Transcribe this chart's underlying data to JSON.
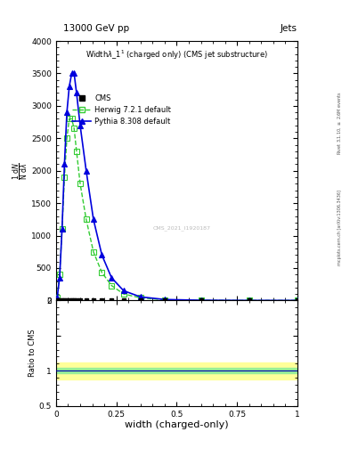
{
  "title_top": "13000 GeV pp",
  "title_right": "Jets",
  "plot_title": "Width $\\lambda\\_1^1$ (charged only) (CMS jet substructure)",
  "xlabel": "width (charged-only)",
  "ylabel_ratio": "Ratio to CMS",
  "right_label_top": "Rivet 3.1.10, $\\geq$ 2.6M events",
  "right_label_bottom": "mcplots.cern.ch [arXiv:1306.3436]",
  "watermark": "CMS_2021_I1920187",
  "herwig_x": [
    0.005,
    0.015,
    0.025,
    0.035,
    0.045,
    0.055,
    0.065,
    0.075,
    0.085,
    0.1,
    0.125,
    0.155,
    0.19,
    0.23,
    0.28,
    0.35,
    0.45,
    0.6,
    0.8,
    1.0
  ],
  "herwig_y": [
    50,
    400,
    1100,
    1900,
    2500,
    2800,
    2800,
    2650,
    2300,
    1800,
    1250,
    750,
    430,
    230,
    100,
    40,
    10,
    2,
    0.3,
    0.05
  ],
  "pythia_x": [
    0.005,
    0.015,
    0.025,
    0.035,
    0.045,
    0.055,
    0.065,
    0.075,
    0.085,
    0.1,
    0.125,
    0.155,
    0.19,
    0.23,
    0.28,
    0.35,
    0.45,
    0.6,
    0.8,
    1.0
  ],
  "pythia_y": [
    50,
    350,
    1100,
    2100,
    2900,
    3300,
    3500,
    3500,
    3200,
    2700,
    2000,
    1250,
    700,
    350,
    150,
    55,
    15,
    3,
    0.4,
    0.05
  ],
  "cms_x": [
    0.005,
    0.015,
    0.025,
    0.035,
    0.045,
    0.055,
    0.065,
    0.075,
    0.085,
    0.1,
    0.125,
    0.155,
    0.19,
    0.23,
    0.28,
    0.35,
    0.45,
    0.6,
    0.8,
    1.0
  ],
  "cms_y": [
    0,
    0,
    0,
    0,
    0,
    0,
    0,
    0,
    0,
    0,
    0,
    0,
    0,
    0,
    0,
    0,
    0,
    0,
    0,
    0
  ],
  "herwig_color": "#33cc33",
  "pythia_color": "#0000dd",
  "cms_color": "#000000",
  "ylim_main": [
    0,
    4000
  ],
  "ylim_ratio": [
    0.5,
    2.0
  ],
  "xlim": [
    0.0,
    1.0
  ],
  "bg_color": "#ffffff",
  "yticks_main": [
    0,
    500,
    1000,
    1500,
    2000,
    2500,
    3000,
    3500,
    4000
  ],
  "ytick_labels_main": [
    "0",
    "500",
    "1000",
    "1500",
    "2000",
    "2500",
    "3000",
    "3500",
    "4000"
  ],
  "xticks": [
    0.0,
    0.25,
    0.5,
    0.75,
    1.0
  ],
  "xtick_labels": [
    "0",
    "0.25",
    "0.5",
    "0.75",
    "1"
  ]
}
